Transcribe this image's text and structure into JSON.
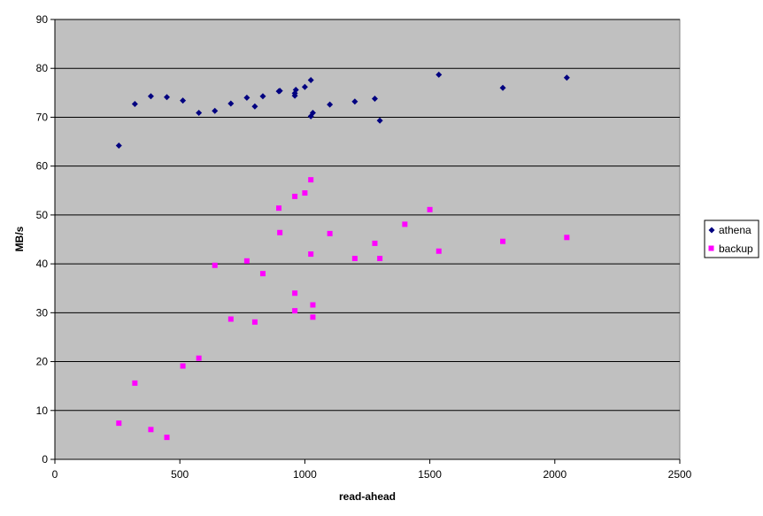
{
  "chart_data": {
    "type": "scatter",
    "title": "",
    "xlabel": "read-ahead",
    "ylabel": "MB/s",
    "xlim": [
      0,
      2500
    ],
    "ylim": [
      0,
      90
    ],
    "x_ticks": [
      "0",
      "500",
      "1000",
      "1500",
      "2000",
      "2500"
    ],
    "y_ticks": [
      "0",
      "10",
      "20",
      "30",
      "40",
      "50",
      "60",
      "70",
      "80",
      "90"
    ],
    "grid": "horizontal",
    "legend_position": "right",
    "plot_background": "#c0c0c0",
    "series": [
      {
        "name": "athena",
        "color": "#000080",
        "marker": "diamond",
        "points": [
          [
            256,
            64.2
          ],
          [
            320,
            72.7
          ],
          [
            384,
            74.3
          ],
          [
            448,
            74.1
          ],
          [
            512,
            73.4
          ],
          [
            576,
            70.9
          ],
          [
            640,
            71.3
          ],
          [
            704,
            72.8
          ],
          [
            768,
            74.0
          ],
          [
            800,
            72.2
          ],
          [
            832,
            74.3
          ],
          [
            896,
            75.3
          ],
          [
            900,
            75.4
          ],
          [
            960,
            74.4
          ],
          [
            960,
            74.9
          ],
          [
            964,
            75.6
          ],
          [
            1000,
            76.2
          ],
          [
            1024,
            77.6
          ],
          [
            1024,
            70.2
          ],
          [
            1032,
            70.9
          ],
          [
            1100,
            72.6
          ],
          [
            1200,
            73.2
          ],
          [
            1280,
            73.8
          ],
          [
            1300,
            69.3
          ],
          [
            1536,
            78.7
          ],
          [
            1792,
            76.0
          ],
          [
            2048,
            78.1
          ]
        ]
      },
      {
        "name": "backup",
        "color": "#ff00ff",
        "marker": "square",
        "points": [
          [
            256,
            7.4
          ],
          [
            320,
            15.6
          ],
          [
            384,
            6.1
          ],
          [
            448,
            4.5
          ],
          [
            512,
            19.1
          ],
          [
            576,
            20.7
          ],
          [
            640,
            39.7
          ],
          [
            704,
            28.7
          ],
          [
            768,
            40.6
          ],
          [
            800,
            28.1
          ],
          [
            832,
            38.0
          ],
          [
            896,
            51.4
          ],
          [
            900,
            46.4
          ],
          [
            960,
            53.8
          ],
          [
            960,
            34.0
          ],
          [
            960,
            30.4
          ],
          [
            1000,
            54.5
          ],
          [
            1024,
            57.2
          ],
          [
            1024,
            42.0
          ],
          [
            1032,
            31.6
          ],
          [
            1032,
            29.1
          ],
          [
            1100,
            46.2
          ],
          [
            1200,
            41.1
          ],
          [
            1280,
            44.2
          ],
          [
            1300,
            41.1
          ],
          [
            1400,
            48.1
          ],
          [
            1500,
            51.1
          ],
          [
            1536,
            42.6
          ],
          [
            1792,
            44.6
          ],
          [
            2048,
            45.4
          ]
        ]
      }
    ]
  }
}
